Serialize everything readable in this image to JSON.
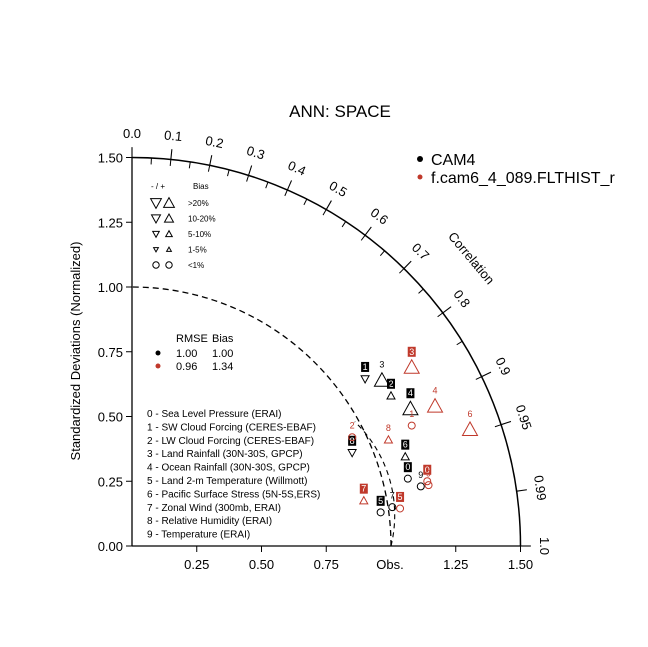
{
  "chart_data": {
    "type": "taylor",
    "title": "ANN: SPACE",
    "ylabel": "Standardized Deviations (Normalized)",
    "arc_label": "Correlation",
    "obs_label": "Obs.",
    "std_range": [
      0,
      1.5
    ],
    "rmse_circle": 1.0,
    "x_ticks": [
      "0.25",
      "0.50",
      "0.75",
      "1.25",
      "1.50"
    ],
    "x_tick_values": [
      0.25,
      0.5,
      0.75,
      1.25,
      1.5
    ],
    "y_ticks": [
      "0.00",
      "0.25",
      "0.50",
      "0.75",
      "1.00",
      "1.25",
      "1.50"
    ],
    "y_tick_values": [
      0,
      0.25,
      0.5,
      0.75,
      1.0,
      1.25,
      1.5
    ],
    "corr_labels": [
      "0.0",
      "0.1",
      "0.2",
      "0.3",
      "0.4",
      "0.5",
      "0.6",
      "0.7",
      "0.8",
      "0.9",
      "0.95",
      "0.99",
      "1.0"
    ],
    "corr_values": [
      0.0,
      0.1,
      0.2,
      0.3,
      0.4,
      0.5,
      0.6,
      0.7,
      0.8,
      0.9,
      0.95,
      0.99,
      1.0
    ],
    "legend": [
      {
        "name": "CAM4",
        "color": "#000000"
      },
      {
        "name": "f.cam6_4_089.FLTHIST_r",
        "color": "#c0392b"
      }
    ],
    "bias_legend": {
      "header_sign": "- / +",
      "header_bias": "Bias",
      "rows": [
        {
          "label": ">20%",
          "marker": "triangle",
          "size": 9
        },
        {
          "label": "10-20%",
          "marker": "triangle",
          "size": 7.5
        },
        {
          "label": "5-10%",
          "marker": "triangle",
          "size": 5.5
        },
        {
          "label": "1-5%",
          "marker": "triangle",
          "size": 4
        },
        {
          "label": "<1%",
          "marker": "circle",
          "size": 3.5
        }
      ]
    },
    "stats_table": {
      "header_rmse": "RMSE",
      "header_bias": "Bias",
      "rows": [
        {
          "color": "#000000",
          "rmse": "1.00",
          "bias": "1.00"
        },
        {
          "color": "#c0392b",
          "rmse": "0.96",
          "bias": "1.34"
        }
      ]
    },
    "variables": [
      "0 - Sea Level Pressure (ERAI)",
      "1 - SW Cloud Forcing (CERES-EBAF)",
      "2 - LW Cloud Forcing (CERES-EBAF)",
      "3 - Land Rainfall (30N-30S, GPCP)",
      "4 - Ocean Rainfall (30N-30S, GPCP)",
      "5 - Land 2-m Temperature (Willmott)",
      "6 - Pacific Surface Stress (5N-5S,ERS)",
      "7 - Zonal Wind (300mb, ERAI)",
      "8 - Relative Humidity (ERAI)",
      "9 - Temperature (ERAI)"
    ],
    "series": [
      {
        "name": "CAM4",
        "color": "#000000",
        "points": [
          {
            "id": "0",
            "x": 1.065,
            "y": 0.26,
            "marker": "circle",
            "size": 3.5,
            "boxed": true
          },
          {
            "id": "1",
            "x": 0.9,
            "y": 0.645,
            "marker": "down",
            "size": 4,
            "boxed": true
          },
          {
            "id": "2",
            "x": 1.0,
            "y": 0.58,
            "marker": "up",
            "size": 4,
            "boxed": true
          },
          {
            "id": "3",
            "x": 0.965,
            "y": 0.64,
            "marker": "up",
            "size": 7.5,
            "boxed": false
          },
          {
            "id": "4",
            "x": 1.075,
            "y": 0.53,
            "marker": "up",
            "size": 7.5,
            "boxed": true
          },
          {
            "id": "5",
            "x": 0.96,
            "y": 0.13,
            "marker": "circle",
            "size": 3.5,
            "boxed": true
          },
          {
            "id": "6",
            "x": 1.055,
            "y": 0.345,
            "marker": "up",
            "size": 4,
            "boxed": true
          },
          {
            "id": "7",
            "x": 1.005,
            "y": 0.15,
            "marker": "circle",
            "size": 3.5,
            "boxed": false
          },
          {
            "id": "8",
            "x": 0.85,
            "y": 0.36,
            "marker": "down",
            "size": 4,
            "boxed": true
          },
          {
            "id": "9",
            "x": 1.115,
            "y": 0.23,
            "marker": "circle",
            "size": 3.5,
            "boxed": false
          }
        ]
      },
      {
        "name": "f.cam6_4_089.FLTHIST_r",
        "color": "#c0392b",
        "points": [
          {
            "id": "0",
            "x": 1.14,
            "y": 0.25,
            "marker": "circle",
            "size": 3.5,
            "boxed": true
          },
          {
            "id": "1",
            "x": 1.08,
            "y": 0.465,
            "marker": "circle",
            "size": 3.5,
            "boxed": false
          },
          {
            "id": "2",
            "x": 0.85,
            "y": 0.42,
            "marker": "circle",
            "size": 3.5,
            "boxed": false
          },
          {
            "id": "3",
            "x": 1.08,
            "y": 0.69,
            "marker": "up",
            "size": 7.5,
            "boxed": true
          },
          {
            "id": "4",
            "x": 1.17,
            "y": 0.54,
            "marker": "up",
            "size": 7.5,
            "boxed": false
          },
          {
            "id": "5",
            "x": 1.035,
            "y": 0.145,
            "marker": "circle",
            "size": 3.5,
            "boxed": true
          },
          {
            "id": "6",
            "x": 1.305,
            "y": 0.45,
            "marker": "up",
            "size": 7.5,
            "boxed": false
          },
          {
            "id": "7",
            "x": 0.895,
            "y": 0.175,
            "marker": "up",
            "size": 4,
            "boxed": true
          },
          {
            "id": "8",
            "x": 0.99,
            "y": 0.41,
            "marker": "up",
            "size": 4,
            "boxed": false
          },
          {
            "id": "9",
            "x": 1.145,
            "y": 0.235,
            "marker": "circle",
            "size": 3.5,
            "boxed": false
          }
        ]
      }
    ]
  }
}
